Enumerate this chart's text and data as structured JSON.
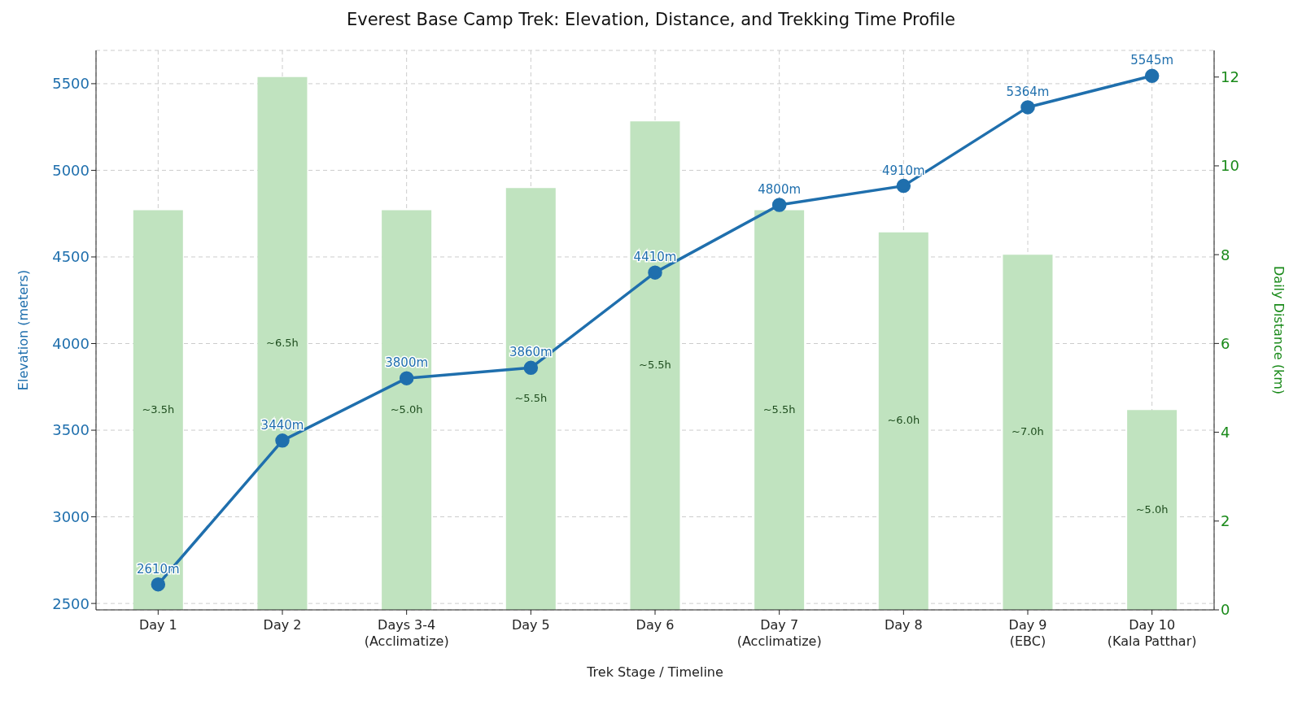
{
  "chart_data": {
    "type": "bar",
    "title": "Everest Base Camp Trek: Elevation, Distance, and Trekking Time Profile",
    "xlabel": "Trek Stage / Timeline",
    "ylabel": "Elevation (meters)",
    "y2label": "Daily Distance (km)",
    "categories": [
      "Day 1",
      "Day 2",
      "Days 3-4\n(Acclimatize)",
      "Day 5",
      "Day 6",
      "Day 7\n(Acclimatize)",
      "Day 8",
      "Day 9\n(EBC)",
      "Day 10\n(Kala Patthar)"
    ],
    "series": [
      {
        "axis": "y2",
        "color": "#c0e3bf",
        "values": [
          9,
          12,
          9,
          9.5,
          11,
          9,
          8.5,
          8,
          4.5
        ]
      },
      {
        "type": "line",
        "color": "#1f6fad",
        "marker": "circle",
        "line_style": "solid",
        "values": [
          2610,
          3440,
          3800,
          3860,
          4410,
          4800,
          4910,
          5364,
          5545
        ],
        "value_labels": [
          "2610m",
          "3440m",
          "3800m",
          "3860m",
          "4410m",
          "4800m",
          "4910m",
          "5364m",
          "5545m"
        ]
      }
    ],
    "ylim": [
      2463,
      5692
    ],
    "yticks": [
      2500,
      3000,
      3500,
      4000,
      4500,
      5000,
      5500
    ],
    "y2lim": [
      0,
      12.6
    ],
    "y2ticks": [
      0,
      2,
      4,
      6,
      8,
      10,
      12
    ],
    "annotations": [
      "~3.5h",
      "~6.5h",
      "~5.0h",
      "~5.5h",
      "~5.5h",
      "~5.5h",
      "~6.0h",
      "~7.0h",
      "~5.0h"
    ],
    "grid": true
  }
}
